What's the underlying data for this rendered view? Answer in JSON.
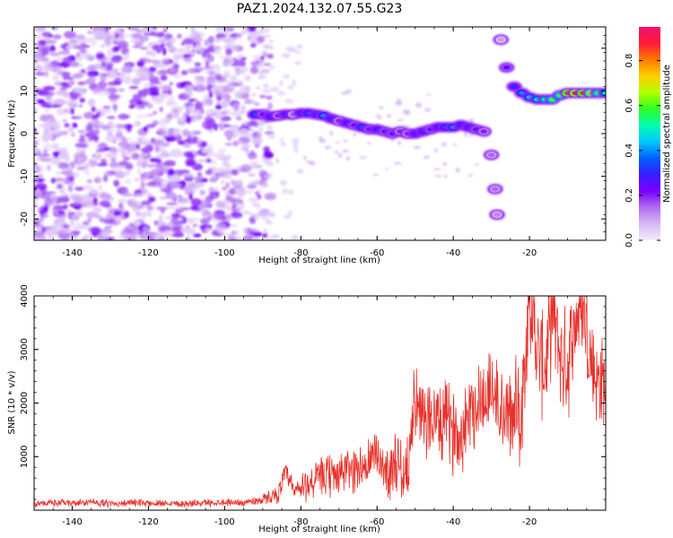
{
  "figure": {
    "title": "PAZ1.2024.132.07.55.G23"
  },
  "chart_data": [
    {
      "type": "heatmap",
      "title": "PAZ1.2024.132.07.55.G23",
      "xlabel": "Height of straight line (km)",
      "ylabel": "Frequency (Hz)",
      "xlim": [
        -150,
        0
      ],
      "ylim": [
        -25,
        25
      ],
      "xticks": [
        -140,
        -120,
        -100,
        -80,
        -60,
        -40,
        -20
      ],
      "yticks": [
        -20,
        -10,
        0,
        10,
        20
      ],
      "grid": false,
      "colorbar": {
        "label": "Normalized spectral amplitude",
        "range": [
          0,
          0.95
        ],
        "ticks": [
          0.0,
          0.2,
          0.4,
          0.6,
          0.8
        ],
        "colormap": [
          "#f2eefa",
          "#d8b8f5",
          "#b06ef0",
          "#7a00ff",
          "#3a1cff",
          "#0060ff",
          "#00c8ff",
          "#00ffb0",
          "#30ff20",
          "#b0ff00",
          "#ffd000",
          "#ff7a00",
          "#ff1a3a",
          "#f01070"
        ]
      },
      "ridge": [
        {
          "x": -92,
          "f": 4.5,
          "a": 0.35
        },
        {
          "x": -90,
          "f": 4.5,
          "a": 0.25
        },
        {
          "x": -88,
          "f": 4.0,
          "a": 0.3
        },
        {
          "x": -86,
          "f": 4.2,
          "a": 0.2
        },
        {
          "x": -84,
          "f": 4.5,
          "a": 0.3
        },
        {
          "x": -82,
          "f": 4.5,
          "a": 0.15
        },
        {
          "x": -80,
          "f": 4.8,
          "a": 0.3
        },
        {
          "x": -78,
          "f": 4.8,
          "a": 0.35
        },
        {
          "x": -76,
          "f": 4.5,
          "a": 0.3
        },
        {
          "x": -74,
          "f": 4.2,
          "a": 0.4
        },
        {
          "x": -72,
          "f": 3.5,
          "a": 0.3
        },
        {
          "x": -70,
          "f": 3.0,
          "a": 0.2
        },
        {
          "x": -68,
          "f": 2.5,
          "a": 0.3
        },
        {
          "x": -66,
          "f": 2.0,
          "a": 0.25
        },
        {
          "x": -64,
          "f": 1.5,
          "a": 0.35
        },
        {
          "x": -62,
          "f": 1.0,
          "a": 0.25
        },
        {
          "x": -60,
          "f": 1.0,
          "a": 0.3
        },
        {
          "x": -58,
          "f": 0.5,
          "a": 0.25
        },
        {
          "x": -56,
          "f": 0.0,
          "a": 0.25
        },
        {
          "x": -54,
          "f": 0.5,
          "a": 0.2
        },
        {
          "x": -52,
          "f": 0.0,
          "a": 0.2
        },
        {
          "x": -50,
          "f": 0.0,
          "a": 0.3
        },
        {
          "x": -48,
          "f": 0.5,
          "a": 0.3
        },
        {
          "x": -46,
          "f": 1.0,
          "a": 0.25
        },
        {
          "x": -44,
          "f": 1.5,
          "a": 0.3
        },
        {
          "x": -42,
          "f": 1.5,
          "a": 0.35
        },
        {
          "x": -40,
          "f": 1.5,
          "a": 0.4
        },
        {
          "x": -38,
          "f": 2.0,
          "a": 0.3
        },
        {
          "x": -36,
          "f": 1.5,
          "a": 0.3
        },
        {
          "x": -34,
          "f": 1.0,
          "a": 0.25
        },
        {
          "x": -32,
          "f": 0.5,
          "a": 0.2
        },
        {
          "x": -30,
          "f": -5.0,
          "a": 0.15
        },
        {
          "x": -29,
          "f": -13.0,
          "a": 0.15
        },
        {
          "x": -28.5,
          "f": -19.0,
          "a": 0.12
        },
        {
          "x": -27.5,
          "f": 22.0,
          "a": 0.1
        },
        {
          "x": -26,
          "f": 15.5,
          "a": 0.25
        },
        {
          "x": -24,
          "f": 11.0,
          "a": 0.3
        },
        {
          "x": -22,
          "f": 9.5,
          "a": 0.4
        },
        {
          "x": -20,
          "f": 8.5,
          "a": 0.45
        },
        {
          "x": -18,
          "f": 8.0,
          "a": 0.5
        },
        {
          "x": -16,
          "f": 8.0,
          "a": 0.55
        },
        {
          "x": -14,
          "f": 8.0,
          "a": 0.6
        },
        {
          "x": -12,
          "f": 9.0,
          "a": 0.6
        },
        {
          "x": -10,
          "f": 9.5,
          "a": 0.85
        },
        {
          "x": -8,
          "f": 9.5,
          "a": 0.9
        },
        {
          "x": -6,
          "f": 9.5,
          "a": 0.85
        },
        {
          "x": -4,
          "f": 9.5,
          "a": 0.75
        },
        {
          "x": -2,
          "f": 9.5,
          "a": 0.6
        },
        {
          "x": 0,
          "f": 9.5,
          "a": 0.5
        }
      ]
    },
    {
      "type": "line",
      "xlabel": "Height of straight line (km)",
      "ylabel": "SNR (10 * v/v)",
      "xlim": [
        -150,
        0
      ],
      "ylim": [
        0,
        4000
      ],
      "xticks": [
        -140,
        -120,
        -100,
        -80,
        -60,
        -40,
        -20
      ],
      "yticks": [
        1000,
        2000,
        3000,
        4000
      ],
      "grid": false,
      "color": "#e8312b",
      "x": [
        -150,
        -145,
        -140,
        -135,
        -130,
        -125,
        -120,
        -115,
        -110,
        -105,
        -100,
        -95,
        -90,
        -86,
        -84,
        -82,
        -80,
        -78,
        -75,
        -72,
        -70,
        -67,
        -65,
        -62,
        -60,
        -58,
        -55,
        -52,
        -50,
        -48,
        -46,
        -44,
        -42,
        -40,
        -38,
        -36,
        -34,
        -32,
        -30,
        -28,
        -26,
        -24,
        -22,
        -20,
        -18,
        -16,
        -14,
        -12,
        -10,
        -8,
        -6,
        -4,
        -2,
        0
      ],
      "y": [
        120,
        140,
        130,
        150,
        120,
        140,
        130,
        140,
        120,
        140,
        150,
        140,
        200,
        300,
        700,
        350,
        400,
        500,
        600,
        650,
        700,
        750,
        800,
        850,
        1100,
        700,
        900,
        700,
        2200,
        1500,
        1800,
        1600,
        1700,
        1500,
        1400,
        1900,
        2000,
        2100,
        2300,
        1900,
        1700,
        1800,
        2000,
        4000,
        3000,
        2600,
        3800,
        2900,
        2700,
        3500,
        3900,
        2800,
        2400,
        2300
      ],
      "noise_amplitude": [
        80,
        80,
        80,
        80,
        80,
        80,
        80,
        80,
        80,
        80,
        80,
        80,
        120,
        200,
        250,
        300,
        350,
        400,
        450,
        500,
        500,
        500,
        550,
        600,
        600,
        600,
        700,
        700,
        900,
        900,
        900,
        900,
        900,
        900,
        900,
        900,
        1000,
        1000,
        1000,
        1000,
        1100,
        1100,
        1200,
        1200,
        1200,
        1200,
        1200,
        1200,
        1200,
        1200,
        1200,
        1200,
        1100,
        1000
      ]
    }
  ]
}
